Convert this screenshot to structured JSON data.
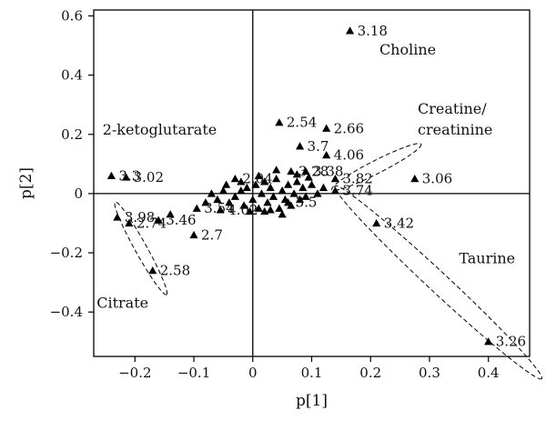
{
  "chart_data": {
    "type": "scatter",
    "xlabel": "p[1]",
    "ylabel": "p[2]",
    "xlim": [
      -0.27,
      0.47
    ],
    "ylim": [
      -0.55,
      0.62
    ],
    "xticks": [
      -0.2,
      -0.1,
      0,
      0.1,
      0.2,
      0.3,
      0.4
    ],
    "xtick_labels": [
      "−0.2",
      "−0.1",
      "0",
      "0.1",
      "0.2",
      "0.3",
      "0.4"
    ],
    "yticks": [
      -0.4,
      -0.2,
      0,
      0.2,
      0.4,
      0.6
    ],
    "ytick_labels": [
      "−0.4",
      "−0.2",
      "0",
      "0.2",
      "0.4",
      "0.6"
    ],
    "grid": false,
    "zero_lines": true,
    "marker": "triangle",
    "marker_color": "#000000",
    "labeled_points": [
      {
        "x": 0.165,
        "y": 0.55,
        "label": "3.18"
      },
      {
        "x": 0.045,
        "y": 0.24,
        "label": "2.54"
      },
      {
        "x": 0.125,
        "y": 0.22,
        "label": "2.66"
      },
      {
        "x": 0.08,
        "y": 0.16,
        "label": "3.7"
      },
      {
        "x": 0.125,
        "y": 0.13,
        "label": "4.06"
      },
      {
        "x": 0.275,
        "y": 0.05,
        "label": "3.06"
      },
      {
        "x": 0.14,
        "y": 0.05,
        "label": "3.82"
      },
      {
        "x": 0.14,
        "y": 0.01,
        "label": "3.74"
      },
      {
        "x": 0.06,
        "y": -0.03,
        "label": "3.5"
      },
      {
        "x": -0.24,
        "y": 0.06,
        "label": "3.3"
      },
      {
        "x": -0.215,
        "y": 0.055,
        "label": "3.02"
      },
      {
        "x": -0.23,
        "y": -0.08,
        "label": "3.98"
      },
      {
        "x": -0.21,
        "y": -0.1,
        "label": "2.74"
      },
      {
        "x": -0.16,
        "y": -0.09,
        "label": "3.46"
      },
      {
        "x": -0.1,
        "y": -0.14,
        "label": "2.7"
      },
      {
        "x": -0.17,
        "y": -0.26,
        "label": "2.58"
      },
      {
        "x": 0.21,
        "y": -0.1,
        "label": "3.42"
      },
      {
        "x": 0.4,
        "y": -0.5,
        "label": "3.26"
      },
      {
        "x": -0.095,
        "y": -0.05,
        "label": "3.54"
      },
      {
        "x": -0.055,
        "y": -0.055,
        "label": "4.02"
      },
      {
        "x": -0.03,
        "y": 0.05,
        "label": "2.04"
      },
      {
        "x": 0.065,
        "y": 0.075,
        "label": "3.28"
      },
      {
        "x": 0.09,
        "y": 0.075,
        "label": "3.38"
      }
    ],
    "unlabeled_points": [
      {
        "x": -0.14,
        "y": -0.07
      },
      {
        "x": -0.08,
        "y": -0.03
      },
      {
        "x": -0.07,
        "y": 0.0
      },
      {
        "x": -0.06,
        "y": -0.02
      },
      {
        "x": -0.05,
        "y": 0.01
      },
      {
        "x": -0.04,
        "y": -0.03
      },
      {
        "x": -0.03,
        "y": -0.01
      },
      {
        "x": -0.02,
        "y": 0.01
      },
      {
        "x": -0.015,
        "y": -0.04
      },
      {
        "x": -0.01,
        "y": 0.02
      },
      {
        "x": 0.0,
        "y": -0.02
      },
      {
        "x": 0.005,
        "y": 0.03
      },
      {
        "x": 0.01,
        "y": -0.05
      },
      {
        "x": 0.015,
        "y": 0.0
      },
      {
        "x": 0.02,
        "y": 0.04
      },
      {
        "x": 0.025,
        "y": -0.03
      },
      {
        "x": 0.03,
        "y": 0.02
      },
      {
        "x": 0.035,
        "y": -0.01
      },
      {
        "x": 0.04,
        "y": 0.05
      },
      {
        "x": 0.045,
        "y": -0.05
      },
      {
        "x": 0.05,
        "y": 0.01
      },
      {
        "x": 0.055,
        "y": -0.02
      },
      {
        "x": 0.06,
        "y": 0.03
      },
      {
        "x": 0.065,
        "y": -0.04
      },
      {
        "x": 0.07,
        "y": 0.0
      },
      {
        "x": 0.075,
        "y": 0.04
      },
      {
        "x": 0.08,
        "y": -0.02
      },
      {
        "x": 0.085,
        "y": 0.02
      },
      {
        "x": 0.09,
        "y": -0.01
      },
      {
        "x": 0.1,
        "y": 0.03
      },
      {
        "x": 0.11,
        "y": 0.0
      },
      {
        "x": 0.12,
        "y": 0.02
      },
      {
        "x": -0.005,
        "y": -0.06
      },
      {
        "x": 0.02,
        "y": -0.06
      },
      {
        "x": 0.04,
        "y": 0.08
      },
      {
        "x": 0.01,
        "y": 0.06
      },
      {
        "x": -0.02,
        "y": 0.04
      },
      {
        "x": 0.05,
        "y": -0.07
      },
      {
        "x": 0.03,
        "y": -0.055
      },
      {
        "x": 0.095,
        "y": 0.055
      },
      {
        "x": 0.075,
        "y": 0.065
      },
      {
        "x": -0.045,
        "y": 0.03
      }
    ],
    "annotations": [
      {
        "text": "Choline",
        "x": 0.215,
        "y": 0.47
      },
      {
        "text": "2-ketoglutarate",
        "x": -0.255,
        "y": 0.2
      },
      {
        "text": "Creatine/",
        "x": 0.28,
        "y": 0.27
      },
      {
        "text": "creatinine",
        "x": 0.28,
        "y": 0.2
      },
      {
        "text": "Taurine",
        "x": 0.35,
        "y": -0.235
      },
      {
        "text": "Citrate",
        "x": -0.265,
        "y": -0.385
      }
    ],
    "groupings": [
      {
        "cx": 0.21,
        "cy": 0.09,
        "rx": 0.085,
        "ry": 0.022,
        "angle": -27
      },
      {
        "cx": -0.19,
        "cy": -0.185,
        "rx": 0.09,
        "ry": 0.02,
        "angle": 61
      },
      {
        "cx": 0.315,
        "cy": -0.3,
        "rx": 0.24,
        "ry": 0.034,
        "angle": 43
      }
    ]
  }
}
